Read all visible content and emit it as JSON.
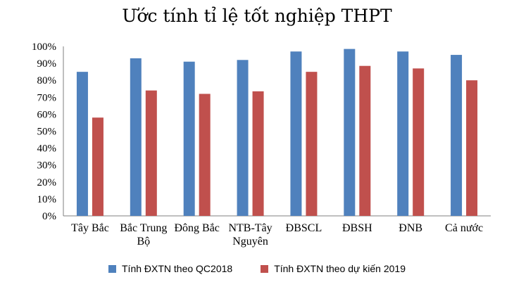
{
  "chart_data": {
    "type": "bar",
    "title": "Ước tính tỉ lệ tốt nghiệp THPT",
    "categories": [
      [
        "Tây Bắc"
      ],
      [
        "Bắc Trung",
        "Bộ"
      ],
      [
        "Đông Bắc"
      ],
      [
        "NTB-Tây",
        "Nguyên"
      ],
      [
        "ĐBSCL"
      ],
      [
        "ĐBSH"
      ],
      [
        "ĐNB"
      ],
      [
        "Cả nước"
      ]
    ],
    "series": [
      {
        "name": "Tính ĐXTN theo QC2018",
        "color": "#4f81bd",
        "values": [
          85,
          93,
          91,
          92,
          97,
          98.5,
          97,
          95
        ]
      },
      {
        "name": "Tính ĐXTN theo dự kiến 2019",
        "color": "#c0504d",
        "values": [
          58,
          74,
          72,
          73.5,
          85,
          88.5,
          87,
          80
        ]
      }
    ],
    "ylim": [
      0,
      100
    ],
    "yticks": [
      "0%",
      "10%",
      "20%",
      "30%",
      "40%",
      "50%",
      "60%",
      "70%",
      "80%",
      "90%",
      "100%"
    ],
    "grid": false,
    "legend_position": "bottom"
  }
}
